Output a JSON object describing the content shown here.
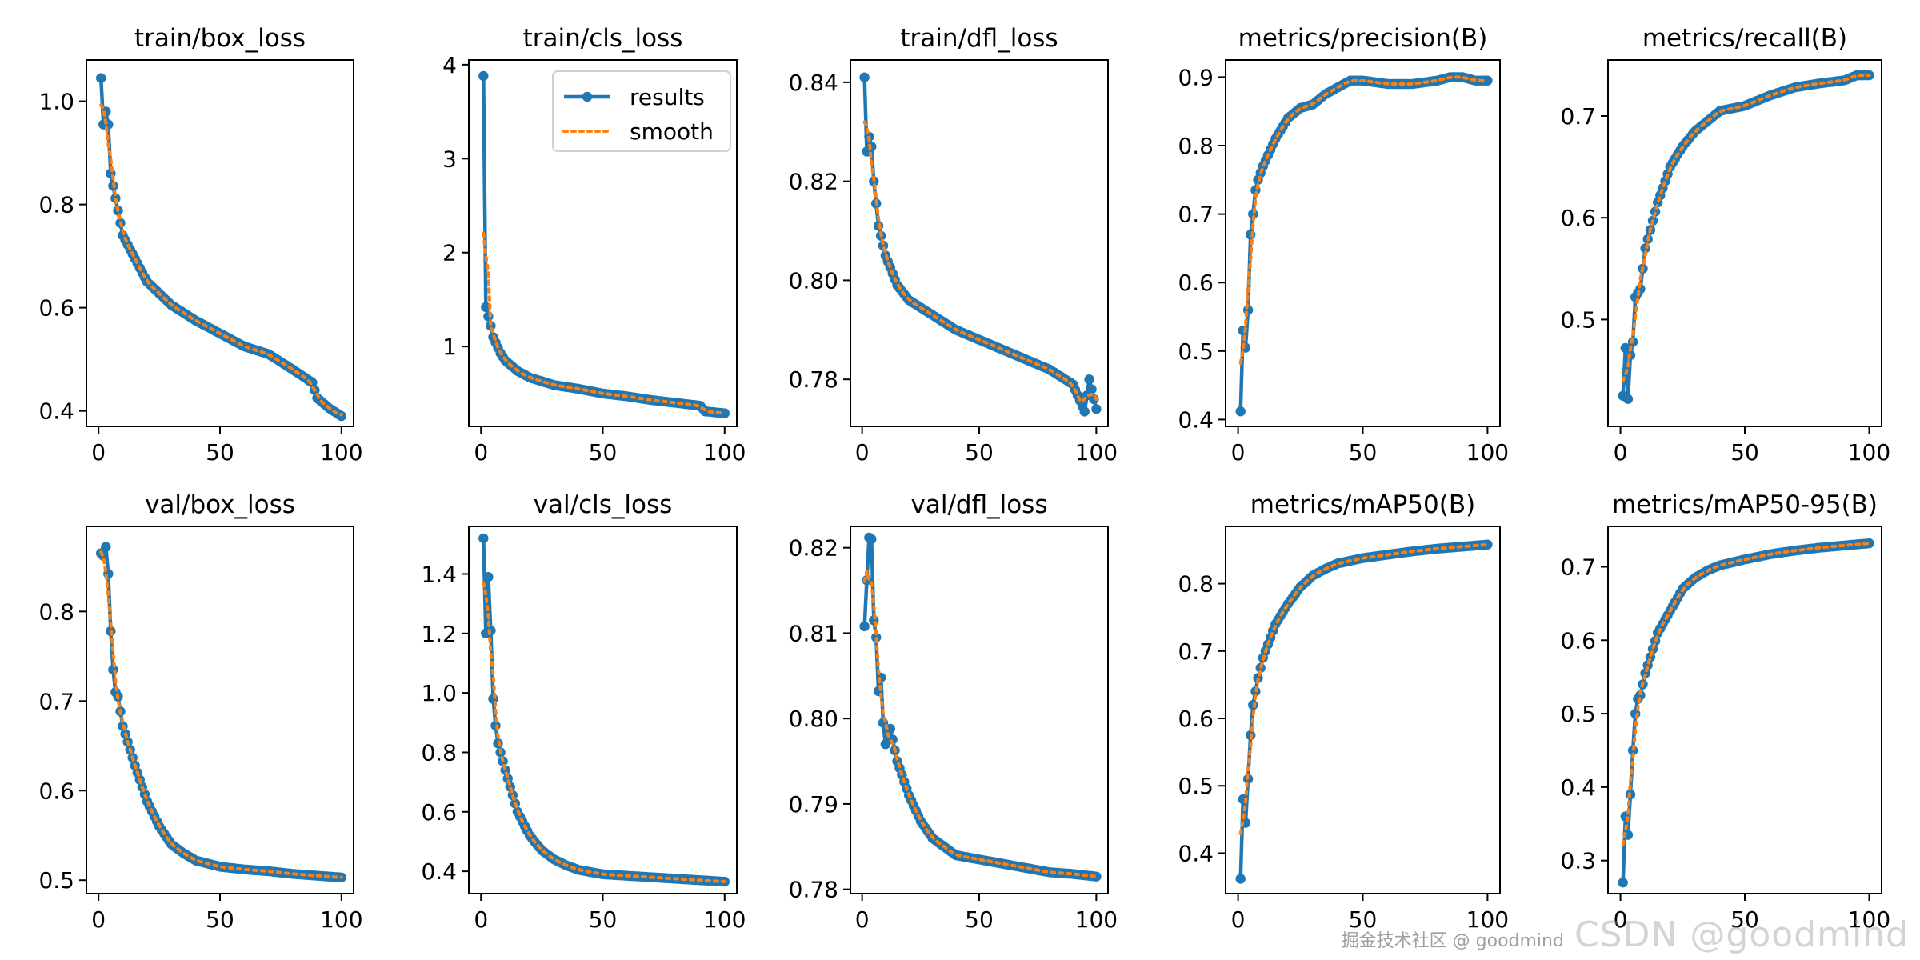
{
  "colors": {
    "results": "#1f77b4",
    "smooth": "#ff7f0e",
    "axis": "#000000"
  },
  "legend": {
    "results_label": "results",
    "smooth_label": "smooth"
  },
  "watermark": {
    "small": "掘金技术社区 @ goodmind",
    "big": "CSDN @goodmind"
  },
  "chart_data": [
    {
      "type": "line",
      "title": "train/box_loss",
      "xlim": [
        -5,
        105
      ],
      "ylim": [
        0.37,
        1.08
      ],
      "yticks": [
        0.4,
        0.6,
        0.8,
        1.0
      ],
      "ytick_labels": [
        "0.4",
        "0.6",
        "0.8",
        "1.0"
      ],
      "xticks": [
        0,
        50,
        100
      ],
      "xtick_labels": [
        "0",
        "50",
        "100"
      ],
      "points": [
        [
          1,
          1.045
        ],
        [
          2,
          0.955
        ],
        [
          3,
          0.98
        ],
        [
          4,
          0.955
        ],
        [
          5,
          0.86
        ],
        [
          10,
          0.74
        ],
        [
          20,
          0.65
        ],
        [
          30,
          0.605
        ],
        [
          40,
          0.575
        ],
        [
          50,
          0.55
        ],
        [
          60,
          0.525
        ],
        [
          70,
          0.51
        ],
        [
          80,
          0.48
        ],
        [
          88,
          0.455
        ],
        [
          90,
          0.425
        ],
        [
          95,
          0.405
        ],
        [
          100,
          0.39
        ]
      ],
      "legend": false
    },
    {
      "type": "line",
      "title": "train/cls_loss",
      "xlim": [
        -5,
        105
      ],
      "ylim": [
        0.15,
        4.05
      ],
      "yticks": [
        1,
        2,
        3,
        4
      ],
      "ytick_labels": [
        "1",
        "2",
        "3",
        "4"
      ],
      "xticks": [
        0,
        50,
        100
      ],
      "xtick_labels": [
        "0",
        "50",
        "100"
      ],
      "points": [
        [
          1,
          3.88
        ],
        [
          2,
          1.42
        ],
        [
          3,
          1.32
        ],
        [
          4,
          1.22
        ],
        [
          5,
          1.1
        ],
        [
          8,
          0.93
        ],
        [
          10,
          0.85
        ],
        [
          15,
          0.74
        ],
        [
          20,
          0.67
        ],
        [
          30,
          0.59
        ],
        [
          40,
          0.55
        ],
        [
          50,
          0.5
        ],
        [
          60,
          0.47
        ],
        [
          70,
          0.43
        ],
        [
          80,
          0.4
        ],
        [
          90,
          0.37
        ],
        [
          92,
          0.31
        ],
        [
          100,
          0.29
        ]
      ],
      "legend": true
    },
    {
      "type": "line",
      "title": "train/dfl_loss",
      "xlim": [
        -5,
        105
      ],
      "ylim": [
        0.7705,
        0.8445
      ],
      "yticks": [
        0.78,
        0.8,
        0.82,
        0.84
      ],
      "ytick_labels": [
        "0.78",
        "0.80",
        "0.82",
        "0.84"
      ],
      "xticks": [
        0,
        50,
        100
      ],
      "xtick_labels": [
        "0",
        "50",
        "100"
      ],
      "points": [
        [
          1,
          0.841
        ],
        [
          2,
          0.826
        ],
        [
          3,
          0.829
        ],
        [
          4,
          0.827
        ],
        [
          5,
          0.82
        ],
        [
          7,
          0.811
        ],
        [
          10,
          0.805
        ],
        [
          15,
          0.799
        ],
        [
          20,
          0.796
        ],
        [
          30,
          0.793
        ],
        [
          40,
          0.79
        ],
        [
          50,
          0.788
        ],
        [
          60,
          0.786
        ],
        [
          70,
          0.784
        ],
        [
          80,
          0.782
        ],
        [
          90,
          0.779
        ],
        [
          95,
          0.7735
        ],
        [
          97,
          0.78
        ],
        [
          100,
          0.774
        ]
      ],
      "legend": false
    },
    {
      "type": "line",
      "title": "metrics/precision(B)",
      "xlim": [
        -5,
        105
      ],
      "ylim": [
        0.39,
        0.925
      ],
      "yticks": [
        0.4,
        0.5,
        0.6,
        0.7,
        0.8,
        0.9
      ],
      "ytick_labels": [
        "0.4",
        "0.5",
        "0.6",
        "0.7",
        "0.8",
        "0.9"
      ],
      "xticks": [
        0,
        50,
        100
      ],
      "xtick_labels": [
        "0",
        "50",
        "100"
      ],
      "points": [
        [
          1,
          0.412
        ],
        [
          2,
          0.53
        ],
        [
          3,
          0.505
        ],
        [
          4,
          0.56
        ],
        [
          5,
          0.67
        ],
        [
          6,
          0.7
        ],
        [
          7,
          0.735
        ],
        [
          8,
          0.75
        ],
        [
          10,
          0.77
        ],
        [
          15,
          0.81
        ],
        [
          20,
          0.84
        ],
        [
          25,
          0.855
        ],
        [
          30,
          0.86
        ],
        [
          35,
          0.875
        ],
        [
          40,
          0.885
        ],
        [
          45,
          0.895
        ],
        [
          50,
          0.895
        ],
        [
          60,
          0.89
        ],
        [
          70,
          0.89
        ],
        [
          80,
          0.895
        ],
        [
          85,
          0.9
        ],
        [
          90,
          0.9
        ],
        [
          95,
          0.895
        ],
        [
          100,
          0.895
        ]
      ],
      "legend": false
    },
    {
      "type": "line",
      "title": "metrics/recall(B)",
      "xlim": [
        -5,
        105
      ],
      "ylim": [
        0.395,
        0.755
      ],
      "yticks": [
        0.5,
        0.6,
        0.7
      ],
      "ytick_labels": [
        "0.5",
        "0.6",
        "0.7"
      ],
      "xticks": [
        0,
        50,
        100
      ],
      "xtick_labels": [
        "0",
        "50",
        "100"
      ],
      "points": [
        [
          1,
          0.425
        ],
        [
          2,
          0.472
        ],
        [
          3,
          0.422
        ],
        [
          4,
          0.465
        ],
        [
          5,
          0.478
        ],
        [
          6,
          0.522
        ],
        [
          8,
          0.53
        ],
        [
          10,
          0.57
        ],
        [
          15,
          0.615
        ],
        [
          20,
          0.65
        ],
        [
          25,
          0.67
        ],
        [
          30,
          0.685
        ],
        [
          35,
          0.695
        ],
        [
          40,
          0.705
        ],
        [
          50,
          0.71
        ],
        [
          60,
          0.72
        ],
        [
          70,
          0.728
        ],
        [
          80,
          0.732
        ],
        [
          90,
          0.735
        ],
        [
          95,
          0.74
        ],
        [
          100,
          0.74
        ]
      ],
      "legend": false
    },
    {
      "type": "line",
      "title": "val/box_loss",
      "xlim": [
        -5,
        105
      ],
      "ylim": [
        0.485,
        0.895
      ],
      "yticks": [
        0.5,
        0.6,
        0.7,
        0.8
      ],
      "ytick_labels": [
        "0.5",
        "0.6",
        "0.7",
        "0.8"
      ],
      "xticks": [
        0,
        50,
        100
      ],
      "xtick_labels": [
        "0",
        "50",
        "100"
      ],
      "points": [
        [
          1,
          0.865
        ],
        [
          2,
          0.862
        ],
        [
          3,
          0.872
        ],
        [
          4,
          0.842
        ],
        [
          5,
          0.778
        ],
        [
          6,
          0.735
        ],
        [
          7,
          0.71
        ],
        [
          8,
          0.705
        ],
        [
          10,
          0.672
        ],
        [
          15,
          0.628
        ],
        [
          20,
          0.588
        ],
        [
          25,
          0.56
        ],
        [
          30,
          0.54
        ],
        [
          35,
          0.53
        ],
        [
          40,
          0.522
        ],
        [
          50,
          0.515
        ],
        [
          60,
          0.512
        ],
        [
          70,
          0.51
        ],
        [
          80,
          0.507
        ],
        [
          90,
          0.505
        ],
        [
          100,
          0.503
        ]
      ],
      "legend": false
    },
    {
      "type": "line",
      "title": "val/cls_loss",
      "xlim": [
        -5,
        105
      ],
      "ylim": [
        0.325,
        1.56
      ],
      "yticks": [
        0.4,
        0.6,
        0.8,
        1.0,
        1.2,
        1.4
      ],
      "ytick_labels": [
        "0.4",
        "0.6",
        "0.8",
        "1.0",
        "1.2",
        "1.4"
      ],
      "xticks": [
        0,
        50,
        100
      ],
      "xtick_labels": [
        "0",
        "50",
        "100"
      ],
      "points": [
        [
          1,
          1.52
        ],
        [
          2,
          1.2
        ],
        [
          3,
          1.39
        ],
        [
          4,
          1.21
        ],
        [
          5,
          0.98
        ],
        [
          6,
          0.89
        ],
        [
          7,
          0.83
        ],
        [
          10,
          0.74
        ],
        [
          15,
          0.6
        ],
        [
          20,
          0.52
        ],
        [
          25,
          0.47
        ],
        [
          30,
          0.44
        ],
        [
          35,
          0.42
        ],
        [
          40,
          0.405
        ],
        [
          50,
          0.39
        ],
        [
          60,
          0.385
        ],
        [
          70,
          0.38
        ],
        [
          80,
          0.375
        ],
        [
          90,
          0.37
        ],
        [
          100,
          0.365
        ]
      ],
      "legend": false
    },
    {
      "type": "line",
      "title": "val/dfl_loss",
      "xlim": [
        -5,
        105
      ],
      "ylim": [
        0.7795,
        0.8225
      ],
      "yticks": [
        0.78,
        0.79,
        0.8,
        0.81,
        0.82
      ],
      "ytick_labels": [
        "0.78",
        "0.79",
        "0.80",
        "0.81",
        "0.82"
      ],
      "xticks": [
        0,
        50,
        100
      ],
      "xtick_labels": [
        "0",
        "50",
        "100"
      ],
      "points": [
        [
          1,
          0.8108
        ],
        [
          2,
          0.8162
        ],
        [
          3,
          0.8212
        ],
        [
          4,
          0.821
        ],
        [
          5,
          0.8115
        ],
        [
          6,
          0.8095
        ],
        [
          7,
          0.8032
        ],
        [
          8,
          0.8048
        ],
        [
          9,
          0.7995
        ],
        [
          10,
          0.797
        ],
        [
          12,
          0.7988
        ],
        [
          15,
          0.795
        ],
        [
          20,
          0.791
        ],
        [
          25,
          0.788
        ],
        [
          30,
          0.786
        ],
        [
          35,
          0.785
        ],
        [
          40,
          0.784
        ],
        [
          50,
          0.7835
        ],
        [
          60,
          0.783
        ],
        [
          70,
          0.7825
        ],
        [
          80,
          0.782
        ],
        [
          90,
          0.7818
        ],
        [
          100,
          0.7815
        ]
      ],
      "legend": false
    },
    {
      "type": "line",
      "title": "metrics/mAP50(B)",
      "xlim": [
        -5,
        105
      ],
      "ylim": [
        0.34,
        0.885
      ],
      "yticks": [
        0.4,
        0.5,
        0.6,
        0.7,
        0.8
      ],
      "ytick_labels": [
        "0.4",
        "0.5",
        "0.6",
        "0.7",
        "0.8"
      ],
      "xticks": [
        0,
        50,
        100
      ],
      "xtick_labels": [
        "0",
        "50",
        "100"
      ],
      "points": [
        [
          1,
          0.362
        ],
        [
          2,
          0.48
        ],
        [
          3,
          0.445
        ],
        [
          4,
          0.51
        ],
        [
          5,
          0.575
        ],
        [
          6,
          0.62
        ],
        [
          7,
          0.64
        ],
        [
          8,
          0.66
        ],
        [
          10,
          0.69
        ],
        [
          15,
          0.74
        ],
        [
          20,
          0.77
        ],
        [
          25,
          0.795
        ],
        [
          30,
          0.812
        ],
        [
          35,
          0.822
        ],
        [
          40,
          0.83
        ],
        [
          50,
          0.838
        ],
        [
          60,
          0.843
        ],
        [
          70,
          0.848
        ],
        [
          80,
          0.852
        ],
        [
          90,
          0.855
        ],
        [
          100,
          0.858
        ]
      ],
      "legend": false
    },
    {
      "type": "line",
      "title": "metrics/mAP50-95(B)",
      "xlim": [
        -5,
        105
      ],
      "ylim": [
        0.255,
        0.755
      ],
      "yticks": [
        0.3,
        0.4,
        0.5,
        0.6,
        0.7
      ],
      "ytick_labels": [
        "0.3",
        "0.4",
        "0.5",
        "0.6",
        "0.7"
      ],
      "xticks": [
        0,
        50,
        100
      ],
      "xtick_labels": [
        "0",
        "50",
        "100"
      ],
      "points": [
        [
          1,
          0.27
        ],
        [
          2,
          0.36
        ],
        [
          3,
          0.335
        ],
        [
          4,
          0.39
        ],
        [
          5,
          0.45
        ],
        [
          6,
          0.5
        ],
        [
          7,
          0.52
        ],
        [
          8,
          0.525
        ],
        [
          10,
          0.555
        ],
        [
          15,
          0.61
        ],
        [
          20,
          0.64
        ],
        [
          25,
          0.67
        ],
        [
          30,
          0.685
        ],
        [
          35,
          0.695
        ],
        [
          40,
          0.702
        ],
        [
          50,
          0.71
        ],
        [
          60,
          0.717
        ],
        [
          70,
          0.722
        ],
        [
          80,
          0.726
        ],
        [
          90,
          0.729
        ],
        [
          100,
          0.732
        ]
      ],
      "legend": false
    }
  ]
}
